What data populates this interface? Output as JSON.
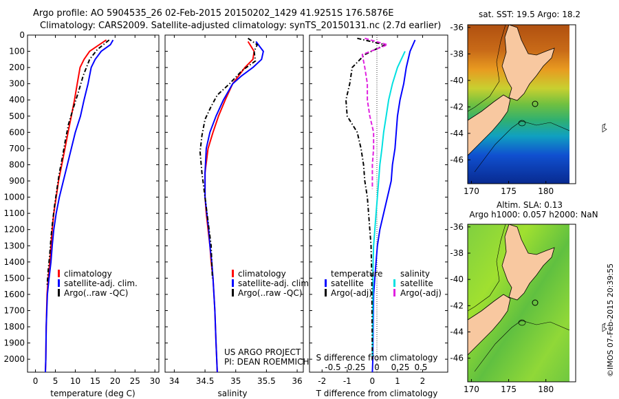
{
  "header": {
    "line1": "Argo profile: AO 5904535_26 02-Feb-2015 20150202_1429 41.9251S 176.5876E",
    "line2": "Climatology: CARS2009. Satellite-adjusted climatology: synTS_20150131.nc (2.7d earlier)"
  },
  "chart_data": [
    {
      "type": "line",
      "id": "temperature",
      "xlabel": "temperature (deg C)",
      "ylabel": "",
      "xlim": [
        -2,
        31
      ],
      "ylim": [
        2080,
        0
      ],
      "xticks": [
        "0",
        "5",
        "10",
        "15",
        "20",
        "25",
        "30"
      ],
      "xtick_values": [
        0,
        5,
        10,
        15,
        20,
        25,
        30
      ],
      "yticks": [
        "0",
        "100",
        "200",
        "300",
        "400",
        "500",
        "600",
        "700",
        "800",
        "900",
        "1000",
        "1100",
        "1200",
        "1300",
        "1400",
        "1500",
        "1600",
        "1700",
        "1800",
        "1900",
        "2000"
      ],
      "ytick_values": [
        0,
        100,
        200,
        300,
        400,
        500,
        600,
        700,
        800,
        900,
        1000,
        1100,
        1200,
        1300,
        1400,
        1500,
        1600,
        1700,
        1800,
        1900,
        2000
      ],
      "legend": [
        "climatology",
        "satellite-adj. clim.",
        "Argo(..raw -QC)"
      ],
      "series": [
        {
          "name": "climatology",
          "color": "#ff0000",
          "dash": "",
          "x": [
            17.8,
            16,
            13.6,
            12.2,
            11.2,
            10.5,
            9.8,
            9.0,
            8.2,
            7.4,
            6.6,
            5.8,
            5.2,
            4.6,
            4.2,
            3.9,
            3.6,
            3.2,
            2.9,
            2.7,
            2.6,
            2.5
          ],
          "y": [
            30,
            60,
            100,
            150,
            200,
            300,
            400,
            500,
            600,
            700,
            800,
            900,
            1000,
            1100,
            1200,
            1300,
            1400,
            1500,
            1600,
            1800,
            2000,
            2080
          ]
        },
        {
          "name": "satellite-adj. clim.",
          "color": "#0000ff",
          "dash": "",
          "x": [
            19.5,
            18.8,
            16.5,
            15,
            14,
            13.2,
            12.2,
            11.3,
            10,
            9,
            8,
            7,
            6,
            5.2,
            4.6,
            4.2,
            3.9,
            3.4,
            3.0,
            2.7,
            2.6,
            2.5
          ],
          "y": [
            30,
            60,
            100,
            150,
            200,
            300,
            400,
            500,
            600,
            700,
            800,
            900,
            1000,
            1100,
            1200,
            1300,
            1400,
            1500,
            1600,
            1800,
            2000,
            2080
          ]
        },
        {
          "name": "Argo(..raw -QC)",
          "color": "#000000",
          "dash": "6,3,1.5,3",
          "x": [
            18.5,
            17.5,
            15.5,
            13.6,
            12,
            10.8,
            9.5,
            8.3,
            7.5,
            6.8,
            6.0,
            5.4,
            4.8,
            4.3,
            3.9,
            3.6,
            3.2,
            2.9
          ],
          "y": [
            30,
            50,
            90,
            150,
            250,
            350,
            450,
            550,
            650,
            750,
            850,
            950,
            1050,
            1150,
            1250,
            1350,
            1450,
            1550
          ]
        }
      ]
    },
    {
      "type": "line",
      "id": "salinity",
      "xlabel": "salinity",
      "xlim": [
        33.85,
        36.1
      ],
      "ylim": [
        2080,
        0
      ],
      "xticks": [
        "34",
        "34.5",
        "35",
        "35.5",
        "36"
      ],
      "xtick_values": [
        34,
        34.5,
        35,
        35.5,
        36
      ],
      "legend": [
        "climatology",
        "satellite-adj. clim.",
        "Argo(..raw -QC)"
      ],
      "annotations": [
        "US ARGO PROJECT",
        "PI: DEAN ROEMMICH"
      ],
      "series": [
        {
          "name": "climatology",
          "color": "#ff0000",
          "dash": "",
          "x": [
            35.2,
            35.3,
            35.28,
            35.15,
            35.05,
            34.95,
            34.83,
            34.72,
            34.63,
            34.55,
            34.5,
            34.5,
            34.52,
            34.55,
            34.58,
            34.6,
            34.63,
            34.66,
            34.68,
            34.7
          ],
          "y": [
            40,
            100,
            150,
            200,
            250,
            300,
            400,
            500,
            600,
            700,
            850,
            1000,
            1100,
            1200,
            1300,
            1400,
            1500,
            1700,
            1900,
            2080
          ]
        },
        {
          "name": "satellite-adj. clim.",
          "color": "#0000ff",
          "dash": "",
          "x": [
            35.33,
            35.45,
            35.42,
            35.28,
            35.1,
            34.95,
            34.8,
            34.68,
            34.58,
            34.52,
            34.5,
            34.5,
            34.53,
            34.56,
            34.58,
            34.61,
            34.63,
            34.66,
            34.68,
            34.7
          ],
          "y": [
            40,
            100,
            150,
            200,
            250,
            300,
            400,
            500,
            600,
            700,
            850,
            1000,
            1100,
            1200,
            1300,
            1400,
            1500,
            1700,
            1900,
            2080
          ]
        },
        {
          "name": "Argo(..raw -QC)",
          "color": "#000000",
          "dash": "6,3,1.5,3",
          "x": [
            35.2,
            35.35,
            35.3,
            35.32,
            35.1,
            34.9,
            34.7,
            34.6,
            34.5,
            34.45,
            34.42,
            34.45,
            34.5,
            34.55,
            34.6,
            34.62
          ],
          "y": [
            20,
            60,
            100,
            160,
            220,
            300,
            370,
            440,
            520,
            620,
            720,
            850,
            1000,
            1150,
            1300,
            1500
          ]
        }
      ]
    },
    {
      "type": "line",
      "id": "difference",
      "xlabel": "T difference from climatology",
      "xlabel_top": "S difference from climatology",
      "xlim": [
        -2.5,
        3
      ],
      "ylim": [
        2080,
        0
      ],
      "xticks_T": [
        "-2",
        "-1",
        "0",
        "1",
        "2"
      ],
      "xtick_values_T": [
        -2,
        -1,
        0,
        1,
        2
      ],
      "xticks_S": [
        "-0.5",
        "-0.25",
        "0",
        "0.25",
        "0.5"
      ],
      "legend_titles": [
        "temperature",
        "salinity"
      ],
      "legend": [
        "satellite",
        "Argo(-adj)",
        "satellite",
        "Argo(-adj)"
      ],
      "series": [
        {
          "name": "T satellite",
          "color": "#0000ff",
          "dash": "",
          "x": [
            1.7,
            1.5,
            1.35,
            1.25,
            1.1,
            1.0,
            0.95,
            0.9,
            0.8,
            0.75,
            0.6,
            0.45,
            0.3,
            0.2,
            0.15,
            0.1,
            0.05,
            0.03,
            0.02,
            0.0
          ],
          "y": [
            30,
            100,
            200,
            300,
            400,
            500,
            600,
            700,
            800,
            900,
            1000,
            1100,
            1200,
            1300,
            1400,
            1500,
            1600,
            1800,
            2000,
            2080
          ]
        },
        {
          "name": "S satellite",
          "color": "#00e0e0",
          "dash": "",
          "x": [
            1.3,
            1.0,
            0.8,
            0.65,
            0.55,
            0.45,
            0.38,
            0.3,
            0.25,
            0.2,
            0.15,
            0.1,
            0.05,
            0.03,
            0.02,
            0.0
          ],
          "y": [
            100,
            200,
            300,
            400,
            500,
            600,
            700,
            800,
            900,
            1000,
            1100,
            1200,
            1300,
            1400,
            1600,
            2000
          ]
        },
        {
          "name": "T Argo(-adj)",
          "color": "#000000",
          "dash": "6,3,1.5,3",
          "x": [
            -0.6,
            0.5,
            -0.3,
            -0.8,
            -0.9,
            -1.05,
            -1.0,
            -0.6,
            -0.45,
            -0.35,
            -0.3,
            -0.2,
            -0.15,
            -0.1,
            -0.05,
            -0.02,
            0.0
          ],
          "y": [
            20,
            60,
            120,
            200,
            300,
            400,
            500,
            600,
            700,
            800,
            900,
            1000,
            1100,
            1200,
            1300,
            1500,
            2000
          ]
        },
        {
          "name": "S Argo(-adj)",
          "color": "#e020e0",
          "dash": "6,3",
          "x": [
            -0.3,
            0.6,
            -0.4,
            -0.3,
            -0.2,
            -0.2,
            -0.1,
            0.05,
            0.05,
            0.0,
            0.0
          ],
          "y": [
            20,
            60,
            120,
            200,
            300,
            400,
            500,
            600,
            700,
            800,
            950
          ]
        }
      ]
    },
    {
      "type": "heatmap",
      "id": "sst-map",
      "title": "sat. SST: 19.5 Argo: 18.2",
      "xlim": [
        169.5,
        184
      ],
      "ylim": [
        -47.8,
        -35.8
      ],
      "xticks": [
        "170",
        "175",
        "180"
      ],
      "xtick_values": [
        170,
        175,
        180
      ],
      "yticks": [
        "-36",
        "-38",
        "-40",
        "-42",
        "-44",
        "-46"
      ],
      "ytick_values": [
        -36,
        -38,
        -40,
        -42,
        -44,
        -46
      ],
      "argo_position": [
        176.5876,
        -41.9251
      ]
    },
    {
      "type": "heatmap",
      "id": "sla-map",
      "title_line1": "Altim. SLA: 0.13",
      "title_line2": "Argo h1000: 0.057 h2000: NaN",
      "xlim": [
        169.5,
        184
      ],
      "ylim": [
        -47.8,
        -35.8
      ],
      "xticks": [
        "170",
        "175",
        "180"
      ],
      "xtick_values": [
        170,
        175,
        180
      ],
      "yticks": [
        "-36",
        "-38",
        "-40",
        "-42",
        "-44",
        "-46"
      ],
      "ytick_values": [
        -36,
        -38,
        -40,
        -42,
        -44,
        -46
      ],
      "argo_position": [
        176.5876,
        -41.9251
      ]
    }
  ],
  "footer": {
    "stamp": "©IMOS 07-Feb-2015 20:39:55"
  }
}
